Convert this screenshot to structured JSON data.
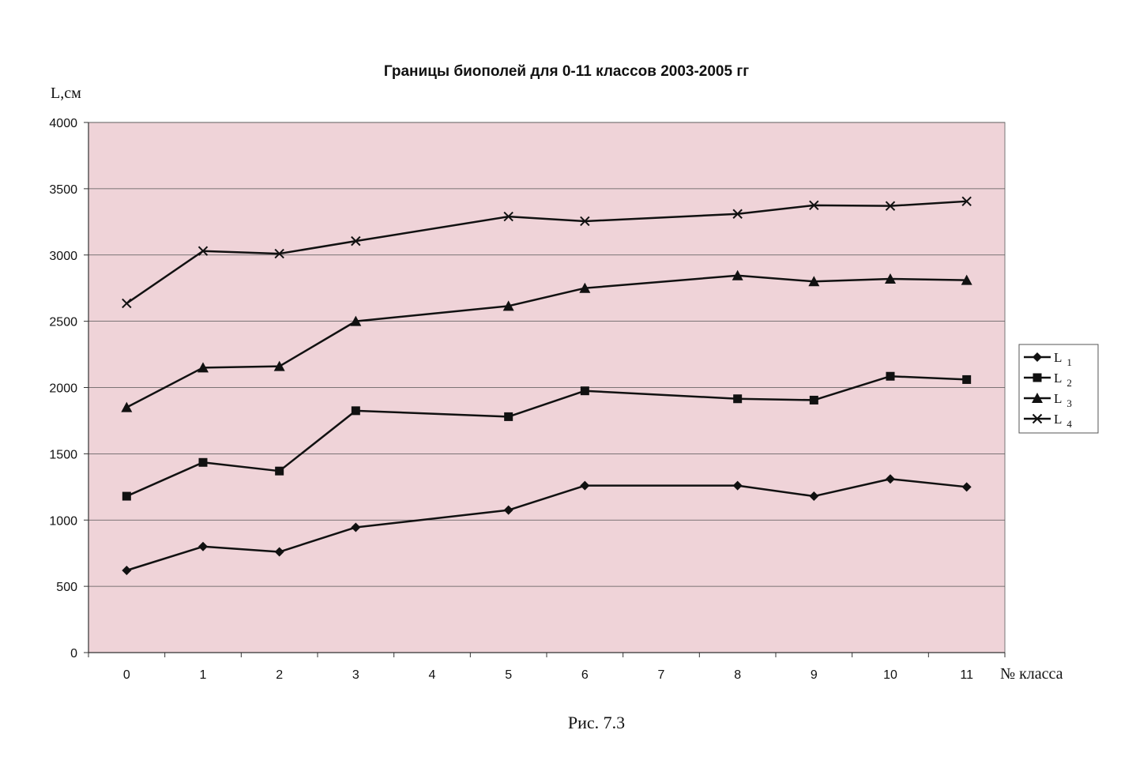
{
  "chart_data": {
    "type": "line",
    "title": "Границы биополей для 0-11 классов 2003-2005 гг",
    "ylabel": "L,см",
    "xlabel": "№ класса",
    "caption": "Рис. 7.3",
    "categories": [
      "0",
      "1",
      "2",
      "3",
      "4",
      "5",
      "6",
      "7",
      "8",
      "9",
      "10",
      "11"
    ],
    "ylim": [
      0,
      4000
    ],
    "yticks": [
      0,
      500,
      1000,
      1500,
      2000,
      2500,
      3000,
      3500,
      4000
    ],
    "grid": true,
    "legend_position": "right",
    "plot_background": "#efd3d8",
    "line_color": "#111111",
    "series": [
      {
        "name": "L 1",
        "sub": "1",
        "base": "L",
        "marker": "diamond",
        "values": [
          620,
          800,
          760,
          945,
          null,
          1075,
          1260,
          null,
          1260,
          1180,
          1310,
          1250
        ]
      },
      {
        "name": "L 2",
        "sub": "2",
        "base": "L",
        "marker": "square",
        "values": [
          1180,
          1435,
          1370,
          1825,
          null,
          1780,
          1975,
          null,
          1915,
          1905,
          2085,
          2060
        ]
      },
      {
        "name": "L 3",
        "sub": "3",
        "base": "L",
        "marker": "triangle",
        "values": [
          1850,
          2150,
          2160,
          2500,
          null,
          2615,
          2750,
          null,
          2845,
          2800,
          2820,
          2810
        ]
      },
      {
        "name": "L 4",
        "sub": "4",
        "base": "L",
        "marker": "x",
        "values": [
          2635,
          3030,
          3010,
          3105,
          null,
          3290,
          3255,
          null,
          3310,
          3375,
          3370,
          3405
        ]
      }
    ]
  }
}
